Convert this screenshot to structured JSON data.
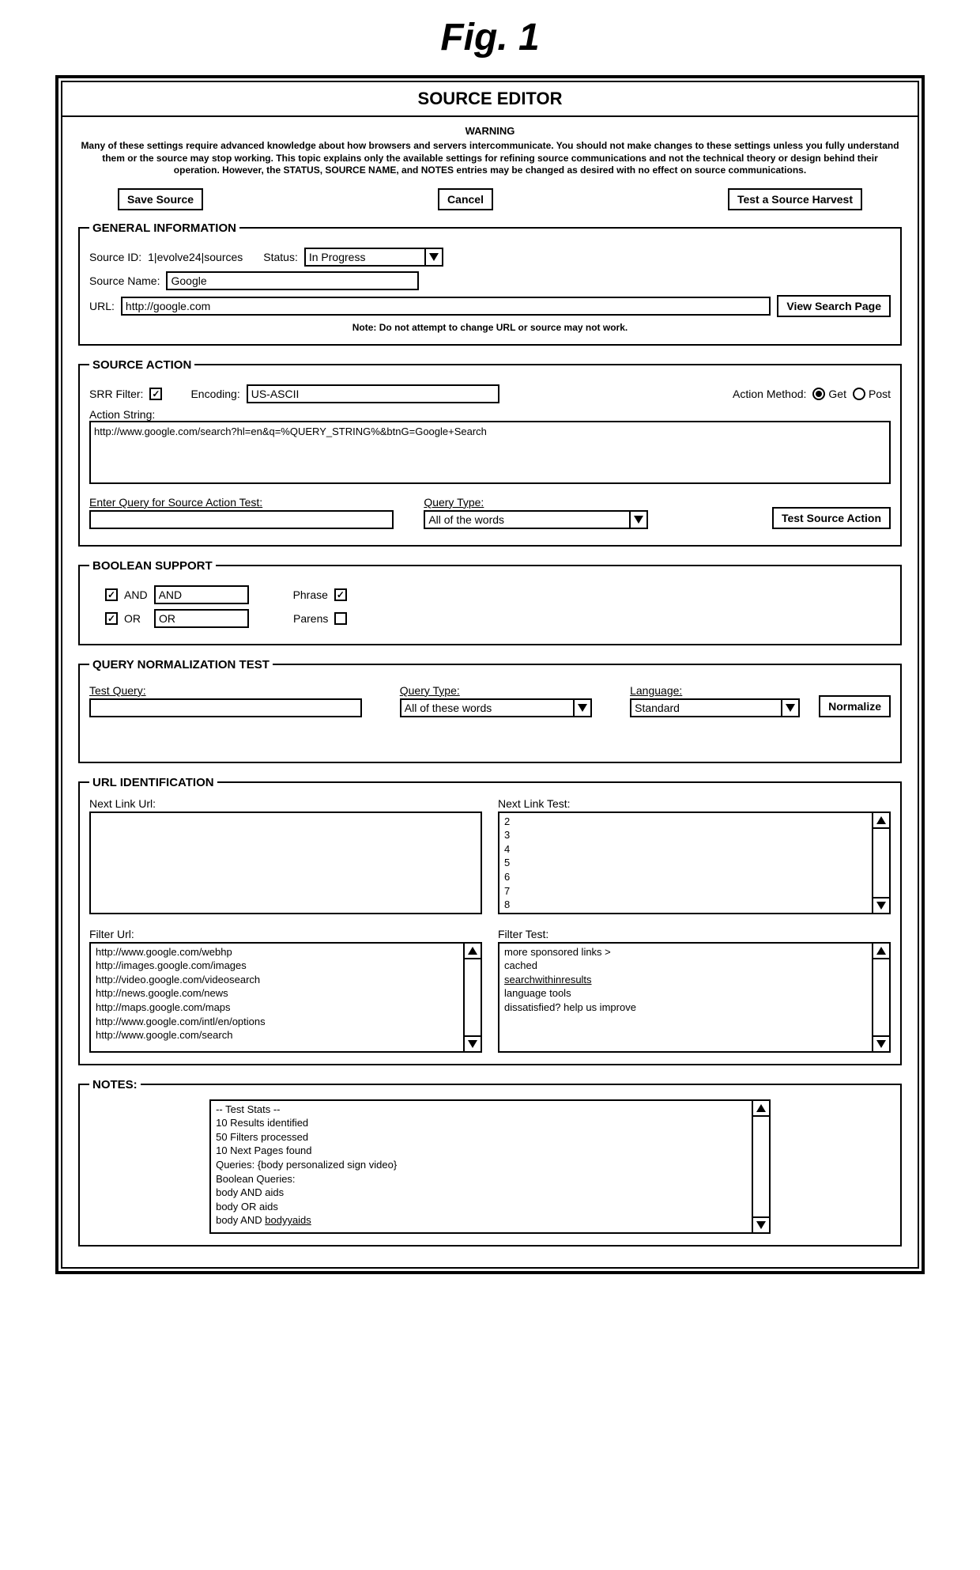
{
  "figure_label": "Fig. 1",
  "title": "SOURCE EDITOR",
  "warning": {
    "head": "WARNING",
    "text": "Many of these settings require advanced knowledge about how browsers and servers intercommunicate. You should not make changes to these settings unless you fully understand them or the source may stop working. This topic explains only the available settings for refining source communications and not the technical theory or design behind their operation. However, the STATUS, SOURCE NAME, and NOTES entries may be changed as desired with no effect on source communications."
  },
  "buttons": {
    "save": "Save Source",
    "cancel": "Cancel",
    "test_harvest": "Test a Source Harvest",
    "view_search": "View Search Page",
    "test_action": "Test Source Action",
    "normalize": "Normalize"
  },
  "general": {
    "legend": "GENERAL INFORMATION",
    "source_id_label": "Source ID:",
    "source_id_value": "1|evolve24|sources",
    "status_label": "Status:",
    "status_value": "In Progress",
    "source_name_label": "Source Name:",
    "source_name_value": "Google",
    "url_label": "URL:",
    "url_value": "http://google.com",
    "url_note": "Note: Do not attempt to change URL or source may not work."
  },
  "action": {
    "legend": "SOURCE ACTION",
    "srr_label": "SRR Filter:",
    "srr_checked": true,
    "encoding_label": "Encoding:",
    "encoding_value": "US-ASCII",
    "method_label": "Action Method:",
    "method_get": "Get",
    "method_post": "Post",
    "string_label": "Action String:",
    "string_value": "http://www.google.com/search?hl=en&q=%QUERY_STRING%&btnG=Google+Search",
    "enter_query_label": "Enter Query for Source Action Test:",
    "query_type_label": "Query Type:",
    "query_type_value": "All of the words"
  },
  "boolean": {
    "legend": "BOOLEAN SUPPORT",
    "and_label": "AND",
    "and_value": "AND",
    "or_label": "OR",
    "or_value": "OR",
    "phrase_label": "Phrase",
    "parens_label": "Parens"
  },
  "qnorm": {
    "legend": "QUERY NORMALIZATION TEST",
    "test_query_label": "Test Query:",
    "query_type_label": "Query Type:",
    "query_type_value": "All of these words",
    "language_label": "Language:",
    "language_value": "Standard"
  },
  "urlid": {
    "legend": "URL IDENTIFICATION",
    "next_link_url_label": "Next Link Url:",
    "next_link_test_label": "Next Link Test:",
    "next_link_test_items": [
      "2",
      "3",
      "4",
      "5",
      "6",
      "7",
      "8"
    ],
    "filter_url_label": "Filter Url:",
    "filter_url_items": [
      "http://www.google.com/webhp",
      "http://images.google.com/images",
      "http://video.google.com/videosearch",
      "http://news.google.com/news",
      "http://maps.google.com/maps",
      "http://www.google.com/intl/en/options",
      "http://www.google.com/search"
    ],
    "filter_test_label": "Filter Test:",
    "filter_test_items": [
      "more sponsored links >",
      "cached",
      "searchwithinresults",
      "language tools",
      "dissatisfied? help us improve"
    ]
  },
  "notes": {
    "legend": "NOTES:",
    "lines": [
      "-- Test Stats --",
      "10 Results identified",
      "50 Filters processed",
      "10 Next Pages found",
      "Queries: {body personalized sign video}",
      "Boolean Queries:",
      "body AND aids",
      "body OR aids",
      "body AND bodyyaids"
    ]
  }
}
